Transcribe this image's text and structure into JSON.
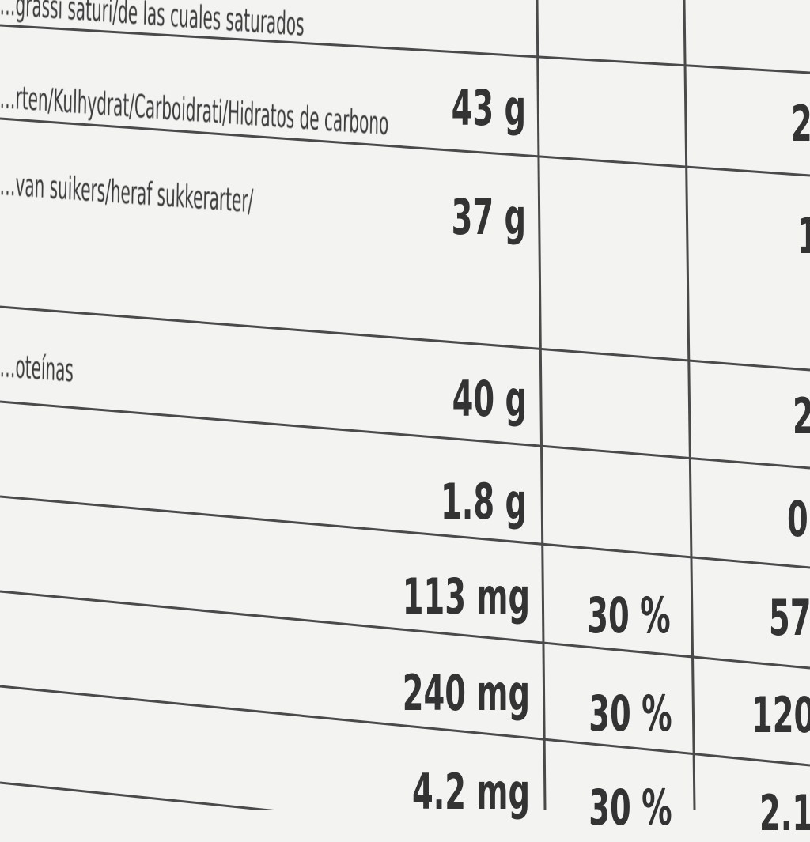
{
  "label": {
    "rows": [
      {
        "name": "…grassi saturi/de las cuales saturados",
        "per100": "",
        "ri": "",
        "portion": ""
      },
      {
        "name": "…rten/Kulhydrat/Carboidrati/Hidratos de carbono",
        "per100": "43 g",
        "ri": "",
        "portion": "2"
      },
      {
        "name": "…van suikers/heraf sukkerarter/",
        "per100": "37 g",
        "ri": "",
        "portion": "1"
      },
      {
        "name": "…oteínas",
        "per100": "40 g",
        "ri": "",
        "portion": "2"
      },
      {
        "name": "",
        "per100": "1.8 g",
        "ri": "",
        "portion": "0"
      },
      {
        "name": "",
        "per100": "113 mg",
        "ri": "30 %",
        "portion": "57"
      },
      {
        "name": "",
        "per100": "240 mg",
        "ri": "30 %",
        "portion": "120"
      },
      {
        "name": "",
        "per100": "4.2 mg",
        "ri": "30 %",
        "portion": "2.1"
      }
    ]
  },
  "colors": {
    "paper": "#f3f3f1",
    "ink": "#333333"
  }
}
